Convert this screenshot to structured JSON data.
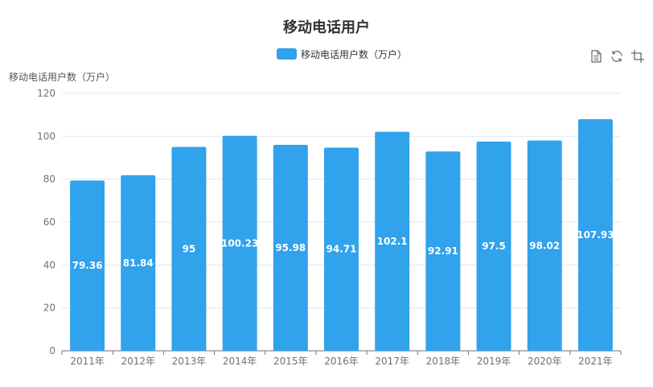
{
  "colors": {
    "bar": "#31a2ec",
    "axis": "#6e7079",
    "grid": "#e0e6f1",
    "label": "#ffffff"
  },
  "toolbox": [
    "data-view-icon",
    "restore-icon",
    "crop-icon"
  ],
  "chart_data": {
    "type": "bar",
    "title": "移动电话用户",
    "ylabel": "移动电话用户数（万户）",
    "xlabel": "",
    "legend_position": "top-center",
    "grid": true,
    "ylim": [
      0,
      120
    ],
    "yticks": [
      "0",
      "20",
      "40",
      "60",
      "80",
      "100",
      "120"
    ],
    "categories": [
      "2011年",
      "2012年",
      "2013年",
      "2014年",
      "2015年",
      "2016年",
      "2017年",
      "2018年",
      "2019年",
      "2020年",
      "2021年"
    ],
    "series": [
      {
        "name": "移动电话用户数（万户）",
        "values": [
          79.36,
          81.84,
          95,
          100.23,
          95.98,
          94.71,
          102.1,
          92.91,
          97.5,
          98.02,
          107.93
        ]
      }
    ]
  }
}
